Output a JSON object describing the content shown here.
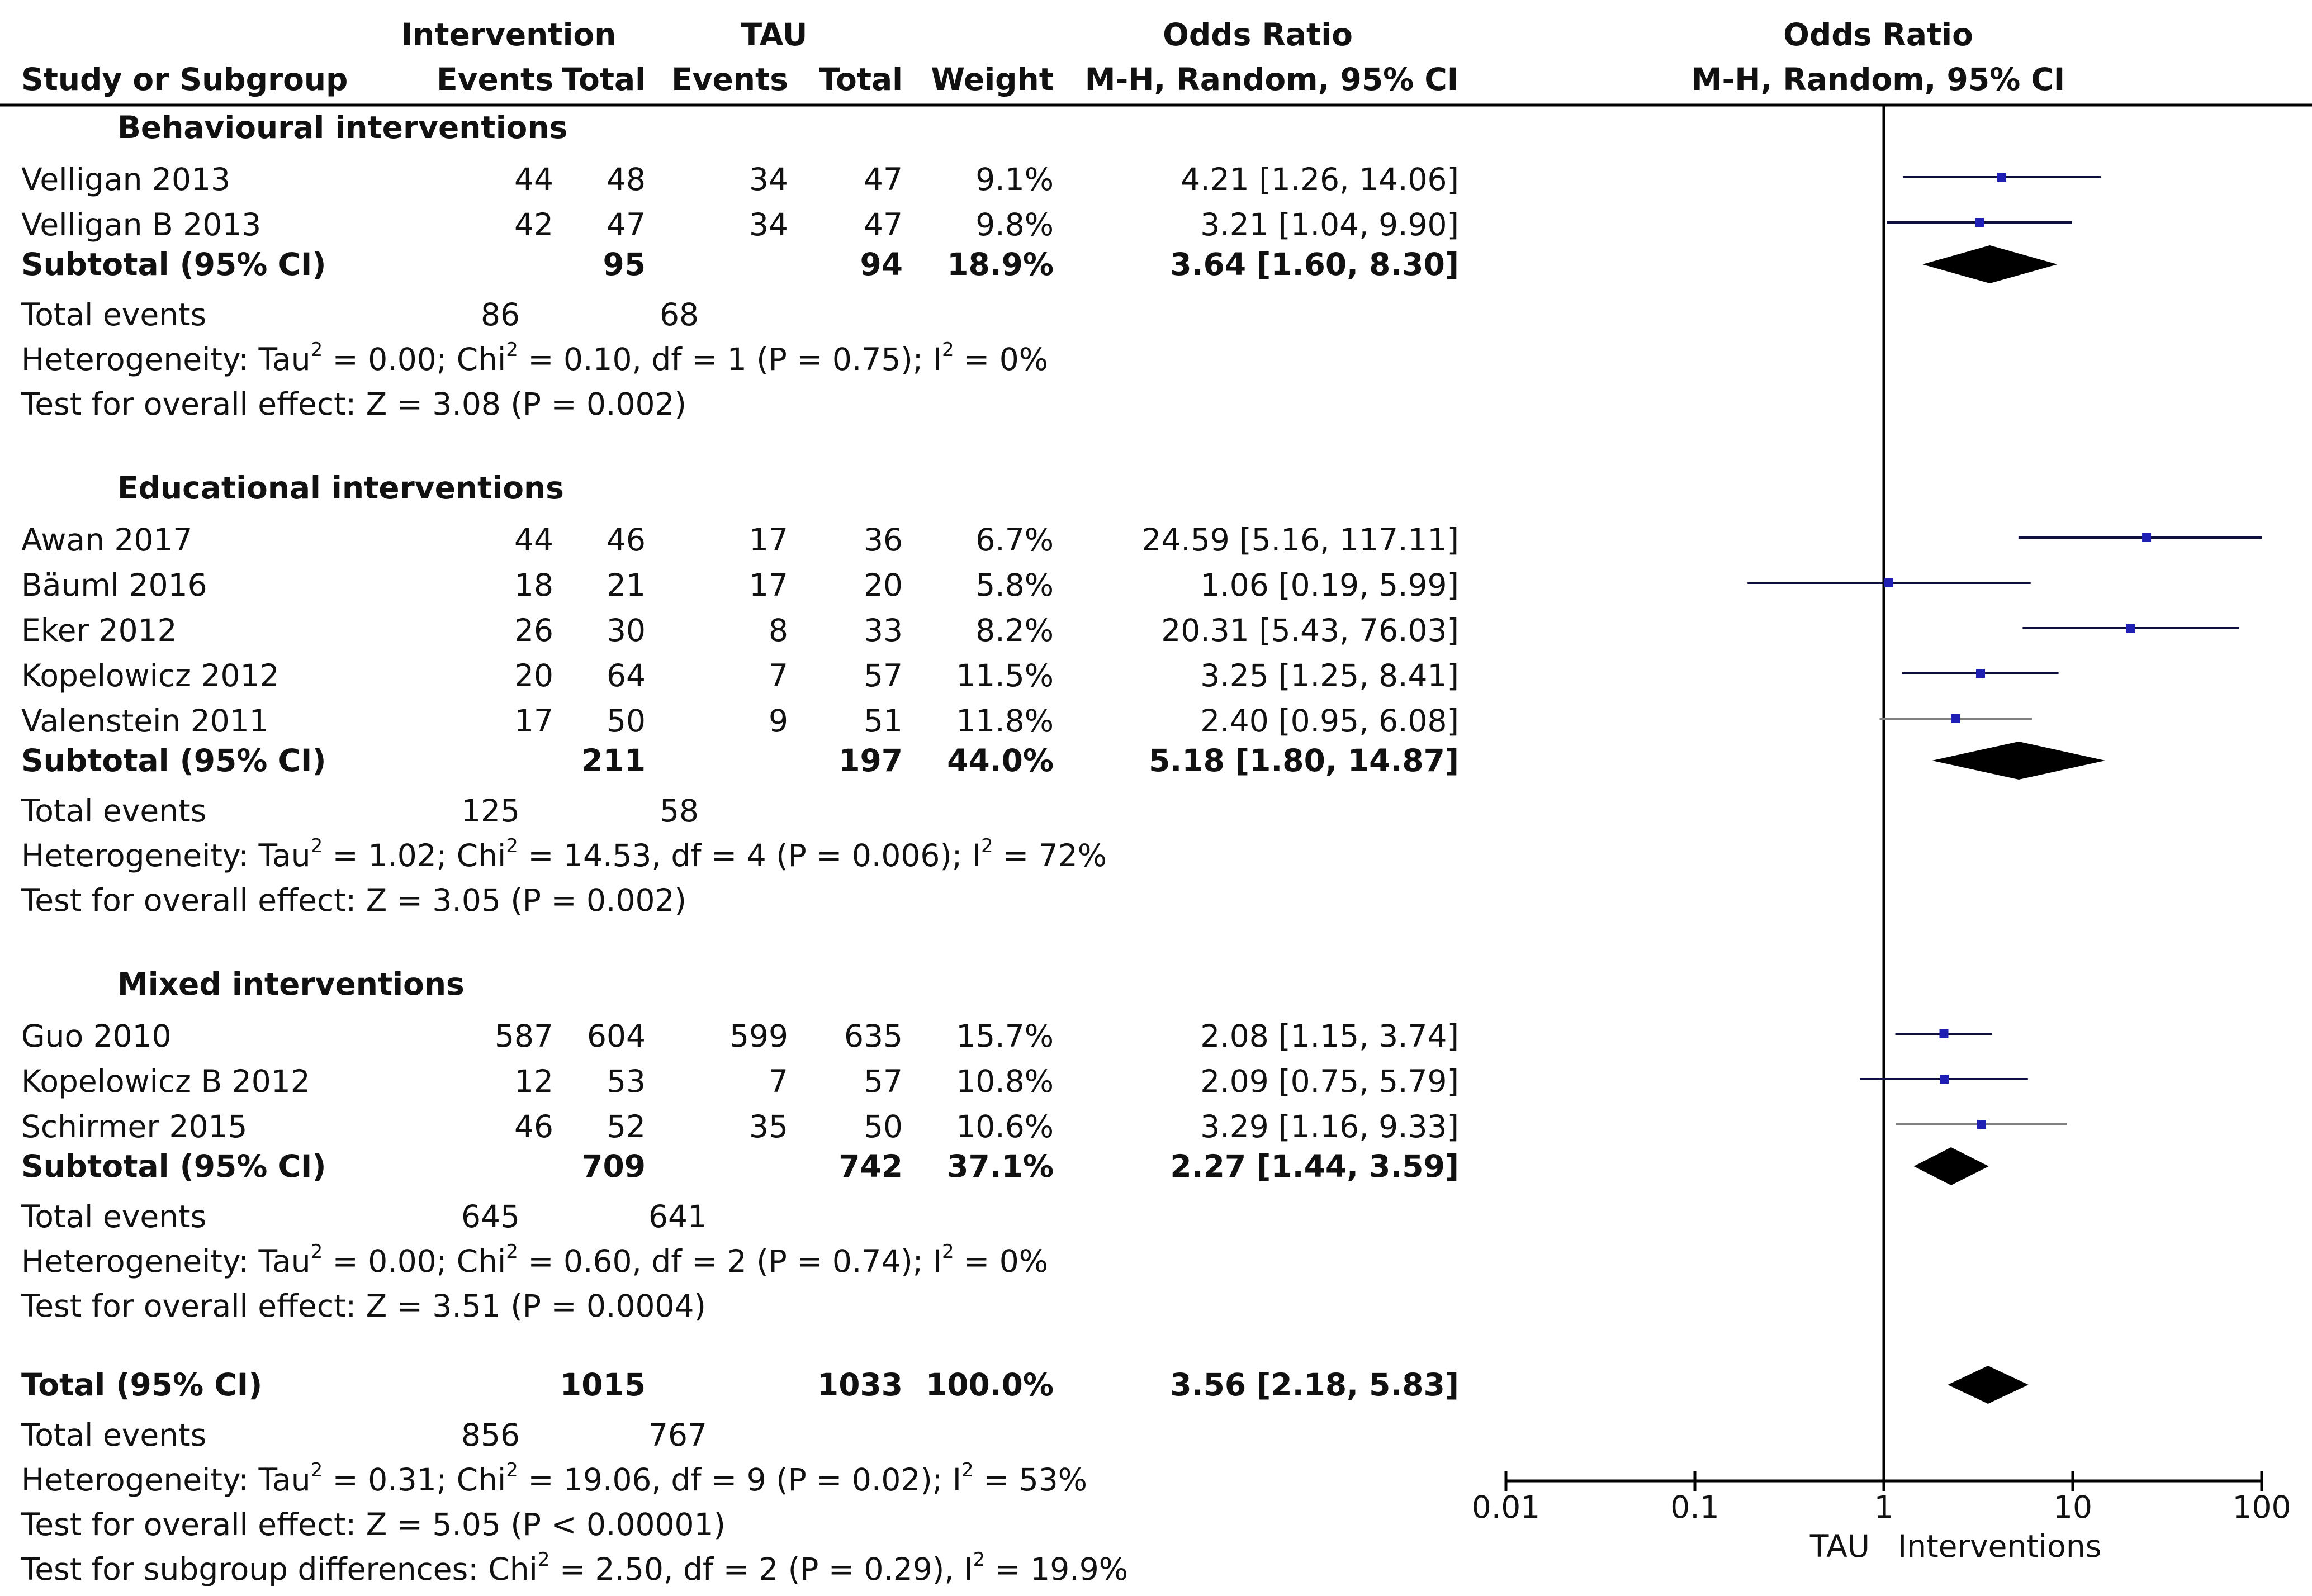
{
  "header": {
    "group1": "Intervention",
    "group2": "TAU",
    "or_title": "Odds Ratio",
    "col_study": "Study or Subgroup",
    "col_events1": "Events",
    "col_total1": "Total",
    "col_events2": "Events",
    "col_total2": "Total",
    "col_weight": "Weight",
    "col_method": "M-H, Random, 95% CI",
    "plot_title": "Odds Ratio",
    "plot_method": "M-H, Random, 95% CI"
  },
  "chart_data": {
    "type": "forest",
    "scale": "log",
    "xlim": [
      0.01,
      100
    ],
    "ticks": [
      "0.01",
      "0.1",
      "1",
      "10",
      "100"
    ],
    "tick_values": [
      0.01,
      0.1,
      1,
      10,
      100
    ],
    "favours_left": "TAU",
    "favours_right": "Interventions",
    "subgroups": [
      {
        "name": "Behavioural interventions",
        "studies": [
          {
            "study": "Velligan 2013",
            "e1": "44",
            "n1": "48",
            "e2": "34",
            "n2": "47",
            "weight": "9.1%",
            "ci_text": "4.21 [1.26, 14.06]",
            "or": 4.21,
            "lo": 1.26,
            "hi": 14.06
          },
          {
            "study": "Velligan B 2013",
            "e1": "42",
            "n1": "47",
            "e2": "34",
            "n2": "47",
            "weight": "9.8%",
            "ci_text": "3.21 [1.04, 9.90]",
            "or": 3.21,
            "lo": 1.04,
            "hi": 9.9
          }
        ],
        "subtotal": {
          "label": "Subtotal (95% CI)",
          "n1": "95",
          "n2": "94",
          "weight": "18.9%",
          "ci_text": "3.64 [1.60, 8.30]",
          "or": 3.64,
          "lo": 1.6,
          "hi": 8.3
        },
        "total_events": {
          "label": "Total events",
          "e1": "86",
          "e2": "68"
        },
        "heterogeneity": {
          "pre": "Heterogeneity: Tau",
          "mid1": " = 0.00; Chi",
          "mid2": " = 0.10, df = 1 (P = 0.75); I",
          "post": " = 0%"
        },
        "overall": "Test for overall effect: Z = 3.08 (P = 0.002)"
      },
      {
        "name": "Educational interventions",
        "studies": [
          {
            "study": "Awan 2017",
            "e1": "44",
            "n1": "46",
            "e2": "17",
            "n2": "36",
            "weight": "6.7%",
            "ci_text": "24.59 [5.16, 117.11]",
            "or": 24.59,
            "lo": 5.16,
            "hi": 117.11
          },
          {
            "study": "Bäuml 2016",
            "e1": "18",
            "n1": "21",
            "e2": "17",
            "n2": "20",
            "weight": "5.8%",
            "ci_text": "1.06 [0.19, 5.99]",
            "or": 1.06,
            "lo": 0.19,
            "hi": 5.99
          },
          {
            "study": "Eker 2012",
            "e1": "26",
            "n1": "30",
            "e2": "8",
            "n2": "33",
            "weight": "8.2%",
            "ci_text": "20.31 [5.43, 76.03]",
            "or": 20.31,
            "lo": 5.43,
            "hi": 76.03
          },
          {
            "study": "Kopelowicz 2012",
            "e1": "20",
            "n1": "64",
            "e2": "7",
            "n2": "57",
            "weight": "11.5%",
            "ci_text": "3.25 [1.25, 8.41]",
            "or": 3.25,
            "lo": 1.25,
            "hi": 8.41
          },
          {
            "study": "Valenstein 2011",
            "e1": "17",
            "n1": "50",
            "e2": "9",
            "n2": "51",
            "weight": "11.8%",
            "ci_text": "2.40 [0.95, 6.08]",
            "or": 2.4,
            "lo": 0.95,
            "hi": 6.08
          }
        ],
        "subtotal": {
          "label": "Subtotal (95% CI)",
          "n1": "211",
          "n2": "197",
          "weight": "44.0%",
          "ci_text": "5.18 [1.80, 14.87]",
          "or": 5.18,
          "lo": 1.8,
          "hi": 14.87
        },
        "total_events": {
          "label": "Total events",
          "e1": "125",
          "e2": "58"
        },
        "heterogeneity": {
          "pre": "Heterogeneity: Tau",
          "mid1": " = 1.02; Chi",
          "mid2": " = 14.53, df = 4 (P = 0.006); I",
          "post": " = 72%"
        },
        "overall": "Test for overall effect: Z = 3.05 (P = 0.002)"
      },
      {
        "name": "Mixed interventions",
        "studies": [
          {
            "study": "Guo 2010",
            "e1": "587",
            "n1": "604",
            "e2": "599",
            "n2": "635",
            "weight": "15.7%",
            "ci_text": "2.08 [1.15, 3.74]",
            "or": 2.08,
            "lo": 1.15,
            "hi": 3.74
          },
          {
            "study": "Kopelowicz B 2012",
            "e1": "12",
            "n1": "53",
            "e2": "7",
            "n2": "57",
            "weight": "10.8%",
            "ci_text": "2.09 [0.75, 5.79]",
            "or": 2.09,
            "lo": 0.75,
            "hi": 5.79
          },
          {
            "study": "Schirmer 2015",
            "e1": "46",
            "n1": "52",
            "e2": "35",
            "n2": "50",
            "weight": "10.6%",
            "ci_text": "3.29 [1.16, 9.33]",
            "or": 3.29,
            "lo": 1.16,
            "hi": 9.33
          }
        ],
        "subtotal": {
          "label": "Subtotal (95% CI)",
          "n1": "709",
          "n2": "742",
          "weight": "37.1%",
          "ci_text": "2.27 [1.44, 3.59]",
          "or": 2.27,
          "lo": 1.44,
          "hi": 3.59
        },
        "total_events": {
          "label": "Total events",
          "e1": "645",
          "e2": "641"
        },
        "heterogeneity": {
          "pre": "Heterogeneity: Tau",
          "mid1": " = 0.00; Chi",
          "mid2": " = 0.60, df = 2 (P = 0.74); I",
          "post": " = 0%"
        },
        "overall": "Test for overall effect: Z = 3.51 (P = 0.0004)"
      }
    ],
    "total": {
      "label": "Total (95% CI)",
      "n1": "1015",
      "n2": "1033",
      "weight": "100.0%",
      "ci_text": "3.56 [2.18, 5.83]",
      "or": 3.56,
      "lo": 2.18,
      "hi": 5.83
    },
    "total_events": {
      "label": "Total events",
      "e1": "856",
      "e2": "767"
    },
    "total_heterogeneity": {
      "pre": "Heterogeneity: Tau",
      "mid1": " = 0.31; Chi",
      "mid2": " = 19.06, df = 9 (P = 0.02); I",
      "post": " = 53%"
    },
    "total_overall": "Test for overall effect: Z = 5.05 (P < 0.00001)",
    "subgroup_diff": {
      "pre": "Test for subgroup differences: Chi",
      "mid": " = 2.50, df = 2 (P = 0.29), I",
      "post": " = 19.9%"
    },
    "colors": {
      "square": "#1f1fb4",
      "line": "#101040",
      "diamond": "#000000",
      "axis": "#000000",
      "light_line": "#808080"
    }
  }
}
